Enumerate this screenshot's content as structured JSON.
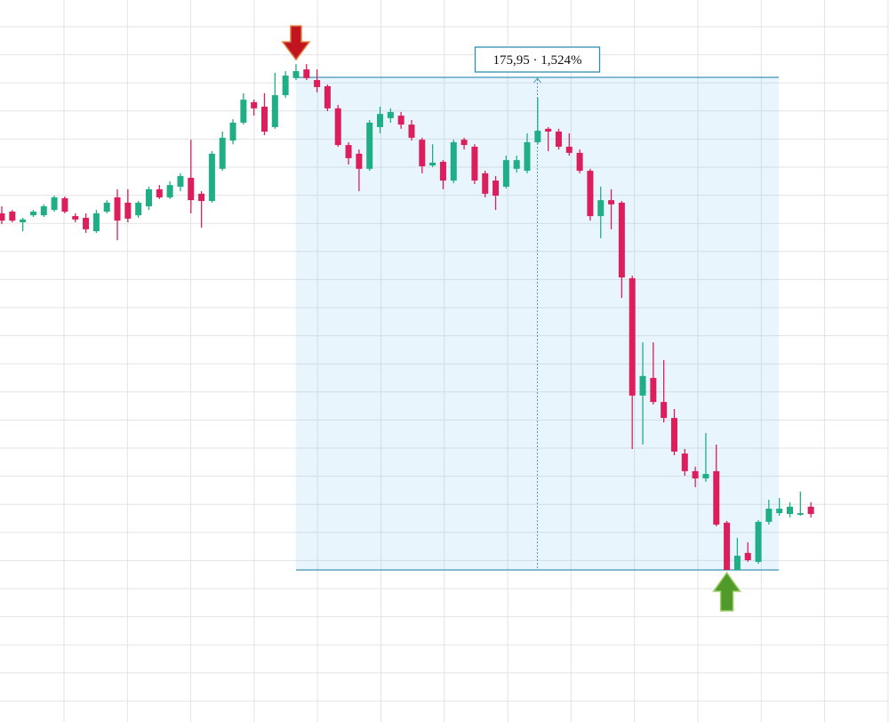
{
  "chart_data": {
    "type": "candlestick",
    "up_color": "#1fae86",
    "down_color": "#dc1f5c",
    "grid": true,
    "ylim": [
      11315.1,
      11573
    ],
    "open": [
      11496.8,
      11497.4,
      11493.6,
      11496.1,
      11496.1,
      11498.0,
      11502.2,
      11495.8,
      11495.2,
      11490.4,
      11497.4,
      11502.5,
      11500.6,
      11496.1,
      11499.3,
      11505.4,
      11502.5,
      11506.3,
      11509.5,
      11503.8,
      11501.2,
      11512.7,
      11522.8,
      11529.2,
      11536.5,
      11534.9,
      11527.6,
      11539.0,
      11545.1,
      11548.2,
      11544.4,
      11542.2,
      11534.3,
      11521.2,
      11518.1,
      11512.7,
      11527.6,
      11530.8,
      11531.7,
      11528.5,
      11523.1,
      11513.9,
      11515.2,
      11508.5,
      11523.1,
      11520.6,
      11511.1,
      11508.5,
      11506.3,
      11512.7,
      11512.0,
      11522.2,
      11527.0,
      11526.0,
      11520.6,
      11518.4,
      11512.0,
      11495.8,
      11501.5,
      11500.6,
      11473.6,
      11431.7,
      11438.0,
      11429.4,
      11423.7,
      11411.0,
      11404.7,
      11402.1,
      11404.7,
      11386.3,
      11369.4,
      11375.5,
      11372.3,
      11386.6,
      11389.7,
      11389.4,
      11389.1,
      11392.0
    ],
    "high": [
      11499.3,
      11498.0,
      11495.2,
      11498.0,
      11500.0,
      11503.1,
      11502.8,
      11496.8,
      11496.8,
      11498.0,
      11501.5,
      11505.4,
      11505.4,
      11501.2,
      11506.3,
      11506.9,
      11508.2,
      11511.1,
      11523.1,
      11504.7,
      11519.0,
      11526.0,
      11530.4,
      11539.7,
      11537.4,
      11539.7,
      11547.0,
      11547.6,
      11550.1,
      11550.1,
      11548.2,
      11542.8,
      11535.5,
      11522.2,
      11519.6,
      11530.1,
      11534.9,
      11534.3,
      11533.0,
      11530.1,
      11523.8,
      11521.5,
      11515.8,
      11523.1,
      11523.8,
      11521.5,
      11512.0,
      11510.1,
      11517.4,
      11517.4,
      11525.4,
      11538.1,
      11527.6,
      11527.0,
      11525.4,
      11519.6,
      11512.7,
      11506.3,
      11505.4,
      11501.2,
      11474.5,
      11450.7,
      11450.7,
      11444.4,
      11426.9,
      11412.6,
      11406.3,
      11418.3,
      11414.2,
      11386.9,
      11380.9,
      11379.3,
      11387.2,
      11394.5,
      11395.1,
      11393.6,
      11397.4,
      11393.6
    ],
    "low": [
      11493.0,
      11493.6,
      11490.4,
      11495.5,
      11495.5,
      11497.4,
      11496.8,
      11493.6,
      11489.8,
      11489.8,
      11496.8,
      11487.2,
      11493.6,
      11495.2,
      11498.0,
      11501.9,
      11501.9,
      11504.7,
      11496.8,
      11491.7,
      11500.6,
      11512.0,
      11521.5,
      11528.5,
      11531.7,
      11524.7,
      11527.0,
      11538.1,
      11544.4,
      11544.4,
      11540.0,
      11533.3,
      11520.6,
      11514.2,
      11504.7,
      11512.0,
      11525.4,
      11529.2,
      11527.0,
      11522.8,
      11511.1,
      11513.3,
      11505.4,
      11507.6,
      11519.6,
      11507.3,
      11502.5,
      11498.0,
      11505.7,
      11511.4,
      11511.1,
      11521.5,
      11519.0,
      11519.6,
      11517.4,
      11511.1,
      11494.2,
      11487.9,
      11491.1,
      11466.6,
      11412.6,
      11414.2,
      11428.5,
      11422.1,
      11410.4,
      11403.1,
      11399.0,
      11400.9,
      11385.0,
      11369.4,
      11369.4,
      11372.3,
      11371.6,
      11385.6,
      11388.8,
      11388.2,
      11388.8,
      11388.2
    ],
    "close": [
      11494.2,
      11494.2,
      11494.6,
      11497.4,
      11499.3,
      11502.5,
      11497.4,
      11494.6,
      11491.1,
      11496.8,
      11500.6,
      11494.2,
      11494.9,
      11500.6,
      11505.4,
      11502.5,
      11506.9,
      11510.1,
      11501.5,
      11501.2,
      11518.1,
      11523.8,
      11529.2,
      11537.4,
      11534.3,
      11526.0,
      11539.0,
      11546.0,
      11547.6,
      11545.1,
      11541.9,
      11534.3,
      11521.2,
      11516.5,
      11512.7,
      11529.2,
      11532.3,
      11533.0,
      11528.5,
      11523.8,
      11513.6,
      11514.9,
      11508.5,
      11522.2,
      11521.2,
      11508.5,
      11503.8,
      11503.1,
      11515.8,
      11515.8,
      11522.2,
      11526.3,
      11526.0,
      11520.6,
      11518.4,
      11512.0,
      11495.8,
      11501.5,
      11500.0,
      11473.9,
      11431.7,
      11438.7,
      11429.4,
      11423.7,
      11411.7,
      11404.7,
      11402.1,
      11403.7,
      11385.6,
      11369.4,
      11374.5,
      11372.9,
      11386.6,
      11391.3,
      11391.3,
      11392.0,
      11389.7,
      11389.4
    ],
    "annotations": [
      {
        "text": "175,95 · 1,524%",
        "high": 11545.37,
        "low": 11369.42
      }
    ]
  }
}
